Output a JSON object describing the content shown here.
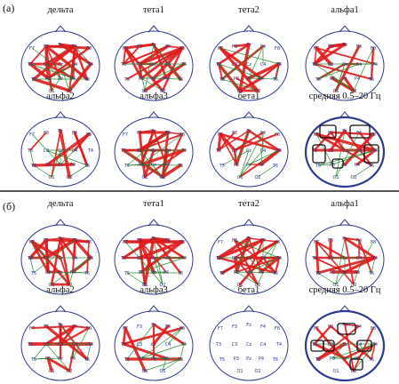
{
  "colors": {
    "head_outline": "#2e3a8f",
    "strong_link": "#e11b1b",
    "weak_link": "#1f8a2b",
    "box": "#111111"
  },
  "electrodes": [
    "F7",
    "F3",
    "Fz",
    "F4",
    "F8",
    "T3",
    "C3",
    "Cz",
    "C4",
    "T4",
    "T5",
    "P3",
    "Pz",
    "P4",
    "T6",
    "O1",
    "O2"
  ],
  "panels": [
    {
      "label": "(а)",
      "heads": [
        {
          "title": "дельта",
          "pattern": "dense"
        },
        {
          "title": "тета1",
          "pattern": "dense"
        },
        {
          "title": "тета2",
          "pattern": "medium"
        },
        {
          "title": "альфа1",
          "pattern": "medium"
        },
        {
          "title": "альфа2",
          "pattern": "sparse"
        },
        {
          "title": "альфа3",
          "pattern": "dense"
        },
        {
          "title": "бета1",
          "pattern": "medium"
        },
        {
          "title": "средняя 0.5–20 Гц",
          "pattern": "summary"
        }
      ]
    },
    {
      "label": "(б)",
      "heads": [
        {
          "title": "дельта",
          "pattern": "dense"
        },
        {
          "title": "тета1",
          "pattern": "medium"
        },
        {
          "title": "тета2",
          "pattern": "dense"
        },
        {
          "title": "альфа1",
          "pattern": "medium"
        },
        {
          "title": "альфа2",
          "pattern": "medium"
        },
        {
          "title": "альфа3",
          "pattern": "sparse"
        },
        {
          "title": "бета1",
          "pattern": "none"
        },
        {
          "title": "средняя 0.5–20 Гц",
          "pattern": "summary"
        }
      ]
    }
  ]
}
